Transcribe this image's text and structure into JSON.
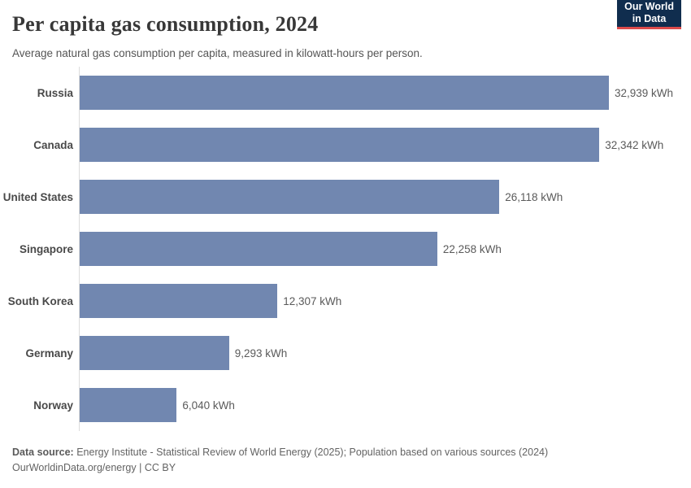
{
  "header": {
    "title": "Per capita gas consumption, 2024",
    "subtitle": "Average natural gas consumption per capita, measured in kilowatt-hours per person.",
    "logo_line1": "Our World",
    "logo_line2": "in Data"
  },
  "chart_data": {
    "type": "bar",
    "orientation": "horizontal",
    "categories": [
      "Russia",
      "Canada",
      "United States",
      "Singapore",
      "South Korea",
      "Germany",
      "Norway"
    ],
    "values": [
      32939,
      32342,
      26118,
      22258,
      12307,
      9293,
      6040
    ],
    "value_labels": [
      "32,939 kWh",
      "32,342 kWh",
      "26,118 kWh",
      "22,258 kWh",
      "12,307 kWh",
      "9,293 kWh",
      "6,040 kWh"
    ],
    "unit": "kWh",
    "title": "Per capita gas consumption, 2024",
    "xlabel": "",
    "ylabel": "",
    "xlim": [
      0,
      32939
    ],
    "grid": false,
    "legend": "none"
  },
  "footer": {
    "source_label": "Data source:",
    "source_text": " Energy Institute - Statistical Review of World Energy (2025); Population based on various sources (2024)",
    "link_text": "OurWorldinData.org/energy",
    "license_separator": " | ",
    "license_text": "CC BY"
  },
  "colors": {
    "bar": "#7187b0",
    "logo_bg": "#102d4e",
    "logo_red": "#dd4b4b",
    "axis": "#dcdcdc"
  }
}
